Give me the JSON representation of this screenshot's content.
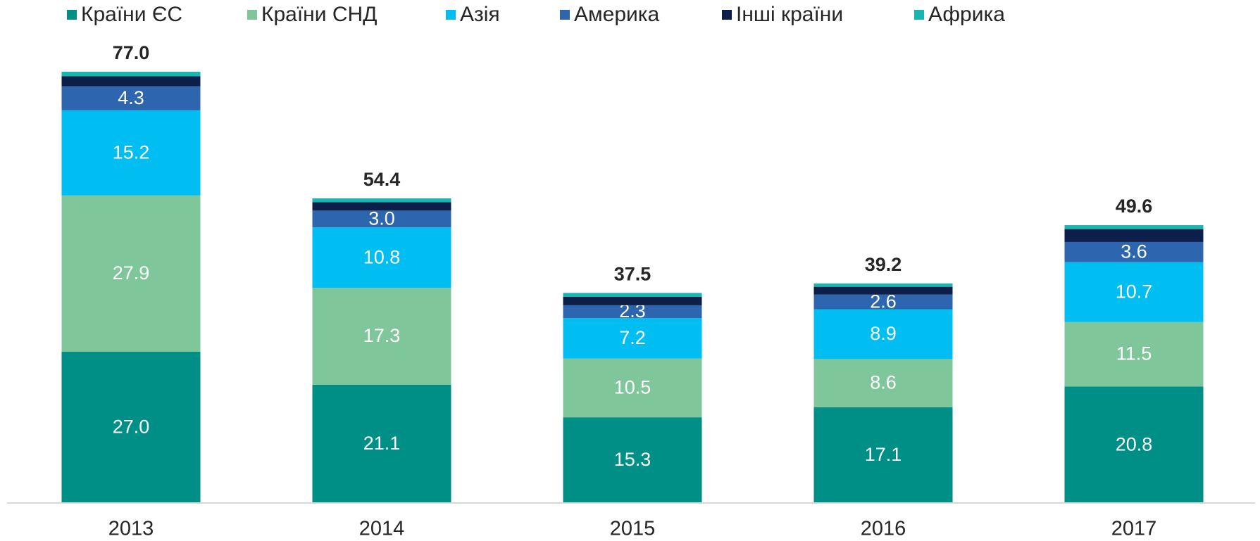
{
  "chart_data": {
    "type": "stacked_bar",
    "categories": [
      "2013",
      "2014",
      "2015",
      "2016",
      "2017"
    ],
    "series": [
      {
        "name": "Країни ЄС",
        "color": "#008f87",
        "values": [
          27.0,
          21.1,
          15.3,
          17.1,
          20.8
        ],
        "value_labels": [
          "27.0",
          "21.1",
          "15.3",
          "17.1",
          "20.8"
        ]
      },
      {
        "name": "Країни СНД",
        "color": "#7fc79a",
        "values": [
          27.9,
          17.3,
          10.5,
          8.6,
          11.5
        ],
        "value_labels": [
          "27.9",
          "17.3",
          "10.5",
          "8.6",
          "11.5"
        ]
      },
      {
        "name": "Азія",
        "color": "#00bef2",
        "values": [
          15.2,
          10.8,
          7.2,
          8.9,
          10.7
        ],
        "value_labels": [
          "15.2",
          "10.8",
          "7.2",
          "8.9",
          "10.7"
        ]
      },
      {
        "name": "Америка",
        "color": "#2d66ae",
        "values": [
          4.3,
          3.0,
          2.3,
          2.6,
          3.6
        ],
        "value_labels": [
          "4.3",
          "3.0",
          "2.3",
          "2.6",
          "3.6"
        ]
      },
      {
        "name": "Інші країни",
        "color": "#0c1f4a",
        "values": [
          1.8,
          1.5,
          1.5,
          1.4,
          2.3
        ]
      },
      {
        "name": "Африка",
        "color": "#17b6b0",
        "values": [
          0.8,
          0.7,
          0.7,
          0.6,
          0.7
        ]
      }
    ],
    "totals": [
      77.0,
      54.4,
      37.5,
      39.2,
      49.6
    ],
    "total_labels": [
      "77.0",
      "54.4",
      "37.5",
      "39.2",
      "49.6"
    ],
    "ylim": [
      0,
      80
    ]
  }
}
